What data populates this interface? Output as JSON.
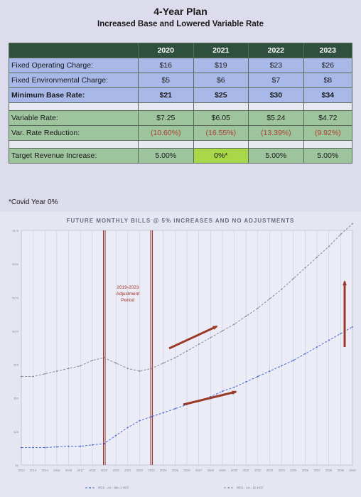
{
  "title": "4-Year Plan",
  "subtitle": "Increased Base and Lowered Variable Rate",
  "table": {
    "headers": [
      "",
      "2020",
      "2021",
      "2022",
      "2023"
    ],
    "rows": [
      {
        "label": "Fixed Operating Charge:",
        "values": [
          "$16",
          "$19",
          "$23",
          "$26"
        ]
      },
      {
        "label": "Fixed Environmental Charge:",
        "values": [
          "$5",
          "$6",
          "$7",
          "$8"
        ]
      },
      {
        "label": "Minimum Base Rate:",
        "values": [
          "$21",
          "$25",
          "$30",
          "$34"
        ]
      },
      {
        "label": "Variable Rate:",
        "values": [
          "$7.25",
          "$6.05",
          "$5.24",
          "$4.72"
        ]
      },
      {
        "label": "Var. Rate Reduction:",
        "values": [
          "(10.60%)",
          "(16.55%)",
          "(13.39%)",
          "(9.92%)"
        ]
      },
      {
        "label": "Target Revenue Increase:",
        "values": [
          "5.00%",
          "0%*",
          "5.00%",
          "5.00%"
        ]
      }
    ]
  },
  "note": "*Covid Year 0%",
  "chart_data": {
    "type": "line",
    "title": "FUTURE MONTHLY BILLS @ 5% INCREASES AND NO ADJUSTMENTS",
    "annotation": "2019-2023 Adjustment Period",
    "x": [
      2012,
      2013,
      2014,
      2015,
      2016,
      2017,
      2018,
      2019,
      2020,
      2021,
      2022,
      2023,
      2024,
      2025,
      2026,
      2027,
      2028,
      2029,
      2030,
      2031,
      2032,
      2033,
      2034,
      2035,
      2036,
      2037,
      2038,
      2039,
      2040
    ],
    "ylim": [
      0,
      175
    ],
    "yticks": [
      "$0",
      "$25",
      "$50",
      "$75",
      "$100",
      "$125",
      "$150",
      "$175"
    ],
    "series": [
      {
        "name": "RES - A4 - Min 2 HCF",
        "color": "#4a6ad0",
        "values": [
          13,
          13,
          13,
          13.5,
          14,
          14,
          15,
          16,
          22,
          28,
          33,
          36,
          39,
          42,
          45,
          48,
          51,
          55,
          58,
          62,
          66,
          70,
          74,
          78,
          83,
          88,
          93,
          98,
          103
        ]
      },
      {
        "name": "RES - A4 - 10 HCF",
        "color": "#8a8a9a",
        "values": [
          66,
          66,
          68,
          70,
          72,
          74,
          78,
          80,
          76,
          72,
          70,
          72,
          76,
          80,
          85,
          90,
          95,
          100,
          105,
          111,
          117,
          124,
          131,
          139,
          147,
          155,
          163,
          172,
          180
        ]
      }
    ]
  }
}
